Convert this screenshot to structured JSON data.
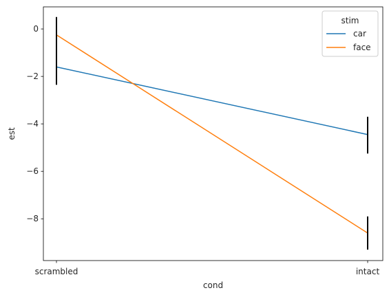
{
  "chart_data": {
    "type": "line",
    "title": "",
    "xlabel": "cond",
    "ylabel": "est",
    "categories": [
      "scrambled",
      "intact"
    ],
    "ylim": [
      -9.76,
      0.93
    ],
    "yticks": [
      0,
      -2,
      -4,
      -6,
      -8
    ],
    "ytick_labels": [
      "0",
      "−2",
      "−4",
      "−6",
      "−8"
    ],
    "grid": false,
    "legend": {
      "title": "stim",
      "placement": "top-right"
    },
    "series": [
      {
        "name": "car",
        "color": "#1f77b4",
        "values": [
          -1.6,
          -4.45
        ],
        "errors": [
          [
            -2.35,
            0.5
          ],
          [
            -5.25,
            -3.7
          ]
        ]
      },
      {
        "name": "face",
        "color": "#ff7f0e",
        "values": [
          -0.25,
          -8.6
        ],
        "errors": [
          [
            -2.35,
            0.5
          ],
          [
            -9.3,
            -7.9
          ]
        ]
      }
    ],
    "errorbar_color": "#000000"
  }
}
